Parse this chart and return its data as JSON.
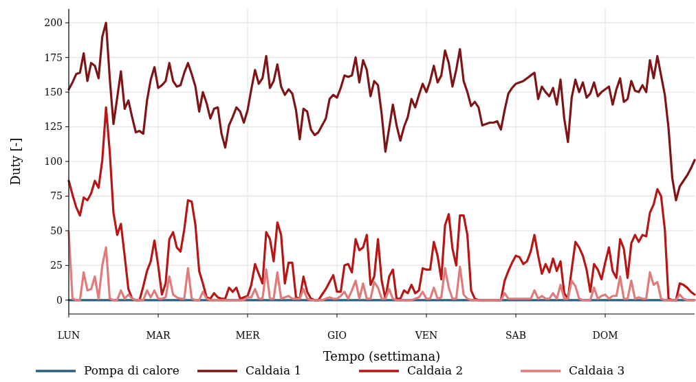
{
  "chart_data": {
    "type": "line",
    "xlabel": "Tempo (settimana)",
    "ylabel": "Duty [-]",
    "ylim": [
      -10,
      210
    ],
    "yticks": [
      0,
      25,
      50,
      75,
      100,
      125,
      150,
      175,
      200
    ],
    "categories": [
      "LUN",
      null,
      null,
      null,
      null,
      null,
      null,
      null,
      null,
      null,
      null,
      null,
      null,
      null,
      null,
      null,
      null,
      null,
      null,
      null,
      null,
      null,
      null,
      null,
      "MAR",
      null,
      null,
      null,
      null,
      null,
      null,
      null,
      null,
      null,
      null,
      null,
      null,
      null,
      null,
      null,
      null,
      null,
      null,
      null,
      null,
      null,
      null,
      null,
      "MER",
      null,
      null,
      null,
      null,
      null,
      null,
      null,
      null,
      null,
      null,
      null,
      null,
      null,
      null,
      null,
      null,
      null,
      null,
      null,
      null,
      null,
      null,
      null,
      "GIO",
      null,
      null,
      null,
      null,
      null,
      null,
      null,
      null,
      null,
      null,
      null,
      null,
      null,
      null,
      null,
      null,
      null,
      null,
      null,
      null,
      null,
      null,
      null,
      "VEN",
      null,
      null,
      null,
      null,
      null,
      null,
      null,
      null,
      null,
      null,
      null,
      null,
      null,
      null,
      null,
      null,
      null,
      null,
      null,
      null,
      null,
      null,
      null,
      "SAB",
      null,
      null,
      null,
      null,
      null,
      null,
      null,
      null,
      null,
      null,
      null,
      null,
      null,
      null,
      null,
      null,
      null,
      null,
      null,
      null,
      null,
      null,
      null,
      "DOM",
      null,
      null,
      null,
      null,
      null,
      null,
      null,
      null,
      null,
      null,
      null,
      null,
      null,
      null,
      null,
      null,
      null,
      null,
      null,
      null,
      null,
      null,
      null,
      null
    ],
    "grid": true,
    "legend": "bottom",
    "line_style": "solid",
    "marker": "none",
    "series": [
      {
        "name": "Pompa di calore",
        "color": "#2b5f80",
        "values": [
          0,
          0,
          0,
          0,
          0,
          0,
          0,
          0,
          0,
          0,
          0,
          0,
          0,
          0,
          0,
          0,
          0,
          0,
          0,
          0,
          0,
          0,
          0,
          0,
          0,
          0,
          0,
          0,
          0,
          0,
          0,
          0,
          0,
          0,
          0,
          0,
          0,
          0,
          0,
          0,
          0,
          0,
          0,
          0,
          0,
          0,
          0,
          0,
          0,
          0,
          0,
          0,
          0,
          0,
          0,
          0,
          0,
          0,
          0,
          0,
          0,
          0,
          0,
          0,
          0,
          0,
          0,
          0,
          0,
          0,
          0,
          0,
          0,
          0,
          0,
          0,
          0,
          0,
          0,
          0,
          0,
          0,
          0,
          0,
          0,
          0,
          0,
          0,
          0,
          0,
          0,
          0,
          0,
          0,
          0,
          0,
          0,
          0,
          0,
          0,
          0,
          0,
          0,
          0,
          0,
          0,
          0,
          0,
          0,
          0,
          0,
          0,
          0,
          0,
          0,
          0,
          0,
          0,
          0,
          0,
          0,
          0,
          0,
          0,
          0,
          0,
          0,
          0,
          0,
          0,
          0,
          0,
          0,
          0,
          0,
          0,
          0,
          0,
          0,
          0,
          0,
          0,
          0,
          0,
          0,
          0,
          0,
          0,
          0,
          0,
          0,
          0,
          0,
          0,
          0,
          0,
          0,
          0,
          0,
          0,
          0,
          0,
          0,
          0,
          0,
          0,
          0,
          0,
          0
        ]
      },
      {
        "name": "Caldaia 1",
        "color": "#7f1416",
        "values": [
          152,
          157,
          163,
          164,
          178,
          158,
          171,
          169,
          160,
          190,
          200,
          160,
          127,
          146,
          165,
          138,
          144,
          132,
          121,
          122,
          120,
          144,
          159,
          168,
          153,
          155,
          158,
          171,
          158,
          154,
          155,
          164,
          171,
          163,
          154,
          136,
          150,
          142,
          131,
          138,
          139,
          120,
          110,
          126,
          132,
          139,
          136,
          128,
          137,
          152,
          166,
          156,
          160,
          176,
          153,
          158,
          170,
          154,
          148,
          152,
          149,
          137,
          116,
          138,
          136,
          123,
          119,
          121,
          126,
          131,
          145,
          148,
          146,
          153,
          162,
          161,
          162,
          175,
          157,
          173,
          166,
          147,
          158,
          155,
          134,
          107,
          124,
          141,
          126,
          115,
          125,
          132,
          145,
          139,
          148,
          156,
          150,
          158,
          169,
          157,
          162,
          180,
          171,
          154,
          166,
          181,
          158,
          150,
          140,
          143,
          139,
          126,
          127,
          128,
          128,
          129,
          123,
          137,
          149,
          153,
          156,
          157,
          158,
          160,
          162,
          164,
          145,
          154,
          150,
          147,
          153,
          141,
          159,
          131,
          114,
          146,
          159,
          150,
          157,
          146,
          149,
          157,
          147,
          150,
          152,
          154,
          141,
          152,
          160,
          143,
          145,
          158,
          151,
          150,
          155,
          150,
          173,
          160,
          176,
          162,
          148,
          124,
          88,
          72,
          82,
          86,
          90,
          95,
          101
        ]
      },
      {
        "name": "Caldaia 2",
        "color": "#b81515",
        "values": [
          86,
          76,
          67,
          61,
          74,
          72,
          77,
          86,
          81,
          101,
          139,
          107,
          63,
          47,
          55,
          32,
          8,
          1,
          0,
          0,
          10,
          21,
          28,
          43,
          25,
          4,
          12,
          44,
          49,
          38,
          35,
          51,
          72,
          71,
          54,
          21,
          12,
          2,
          1,
          5,
          2,
          1,
          1,
          9,
          6,
          9,
          1,
          2,
          3,
          11,
          26,
          19,
          12,
          49,
          44,
          28,
          56,
          47,
          12,
          27,
          27,
          2,
          1,
          17,
          6,
          1,
          0,
          0,
          4,
          8,
          13,
          18,
          6,
          6,
          25,
          26,
          20,
          44,
          36,
          38,
          47,
          11,
          17,
          44,
          14,
          1,
          17,
          22,
          1,
          1,
          7,
          5,
          11,
          5,
          7,
          23,
          22,
          22,
          42,
          32,
          15,
          54,
          62,
          37,
          25,
          61,
          61,
          47,
          7,
          1,
          0,
          0,
          0,
          0,
          0,
          0,
          0,
          14,
          21,
          27,
          32,
          31,
          26,
          28,
          35,
          47,
          32,
          19,
          26,
          20,
          30,
          21,
          28,
          5,
          1,
          22,
          42,
          38,
          32,
          22,
          6,
          26,
          22,
          15,
          27,
          38,
          21,
          16,
          44,
          37,
          16,
          41,
          47,
          42,
          47,
          46,
          63,
          69,
          80,
          75,
          51,
          1,
          0,
          0,
          12,
          11,
          9,
          6,
          4
        ]
      },
      {
        "name": "Caldaia 3",
        "color": "#e07b7b",
        "values": [
          49,
          1,
          0,
          0,
          20,
          7,
          8,
          17,
          1,
          25,
          38,
          1,
          0,
          0,
          7,
          1,
          4,
          1,
          0,
          0,
          0,
          7,
          2,
          7,
          1,
          1,
          2,
          17,
          4,
          2,
          1,
          1,
          23,
          1,
          0,
          0,
          6,
          1,
          0,
          0,
          0,
          0,
          0,
          0,
          0,
          0,
          0,
          0,
          2,
          2,
          8,
          1,
          1,
          22,
          1,
          1,
          20,
          1,
          2,
          3,
          1,
          1,
          1,
          8,
          1,
          0,
          0,
          0,
          0,
          1,
          2,
          1,
          1,
          3,
          6,
          1,
          7,
          14,
          1,
          12,
          1,
          1,
          13,
          9,
          1,
          1,
          8,
          1,
          0,
          0,
          0,
          0,
          0,
          1,
          2,
          6,
          1,
          1,
          9,
          1,
          2,
          23,
          9,
          1,
          1,
          24,
          4,
          1,
          0,
          0,
          0,
          0,
          0,
          0,
          0,
          0,
          0,
          5,
          1,
          1,
          1,
          1,
          1,
          1,
          1,
          7,
          1,
          3,
          1,
          1,
          5,
          1,
          11,
          1,
          1,
          14,
          10,
          1,
          0,
          0,
          0,
          9,
          1,
          3,
          4,
          1,
          3,
          3,
          17,
          1,
          1,
          14,
          1,
          2,
          1,
          1,
          20,
          11,
          13,
          1,
          0,
          0,
          0,
          0,
          4,
          1,
          0,
          0,
          0
        ]
      }
    ]
  }
}
